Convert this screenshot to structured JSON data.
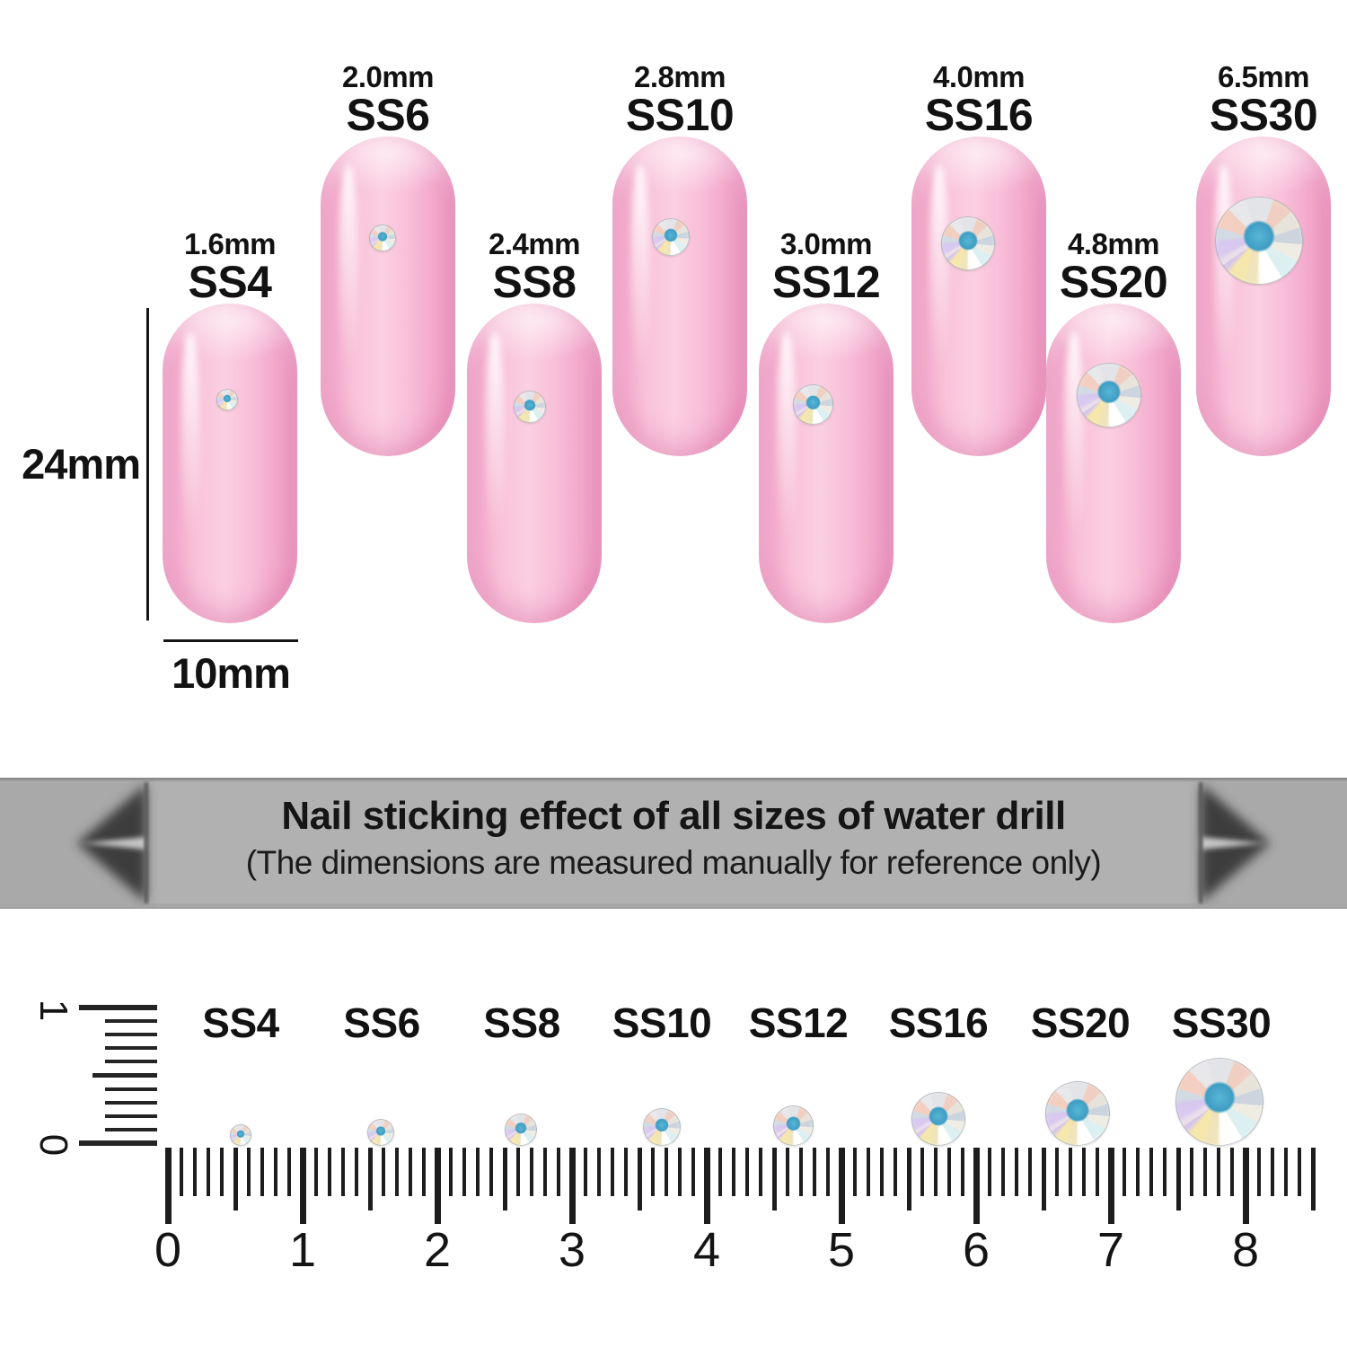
{
  "measurements": {
    "height_label": "24mm",
    "width_label": "10mm"
  },
  "nails": [
    {
      "ss": "SS4",
      "size": "1.6mm"
    },
    {
      "ss": "SS6",
      "size": "2.0mm"
    },
    {
      "ss": "SS8",
      "size": "2.4mm"
    },
    {
      "ss": "SS10",
      "size": "2.8mm"
    },
    {
      "ss": "SS12",
      "size": "3.0mm"
    },
    {
      "ss": "SS16",
      "size": "4.0mm"
    },
    {
      "ss": "SS20",
      "size": "4.8mm"
    },
    {
      "ss": "SS30",
      "size": "6.5mm"
    }
  ],
  "banner": {
    "title": "Nail sticking effect of all sizes of water drill",
    "subtitle": "(The dimensions are measured manually for reference only)"
  },
  "ruler": {
    "horizontal_numbers": [
      "0",
      "1",
      "2",
      "3",
      "4",
      "5",
      "6",
      "7",
      "8"
    ],
    "vertical_numbers": [
      "1",
      "0"
    ],
    "stone_labels": [
      "SS4",
      "SS6",
      "SS8",
      "SS10",
      "SS12",
      "SS16",
      "SS20",
      "SS30"
    ]
  },
  "colors": {
    "nail_pink": "#f8b6d2",
    "nail_edge_pink": "#ee95bf",
    "banner_gray": "#a9a9a9",
    "banner_panel_gray": "#b1b1b1",
    "stone_center_teal": "#45a8cc",
    "text": "#141414"
  }
}
